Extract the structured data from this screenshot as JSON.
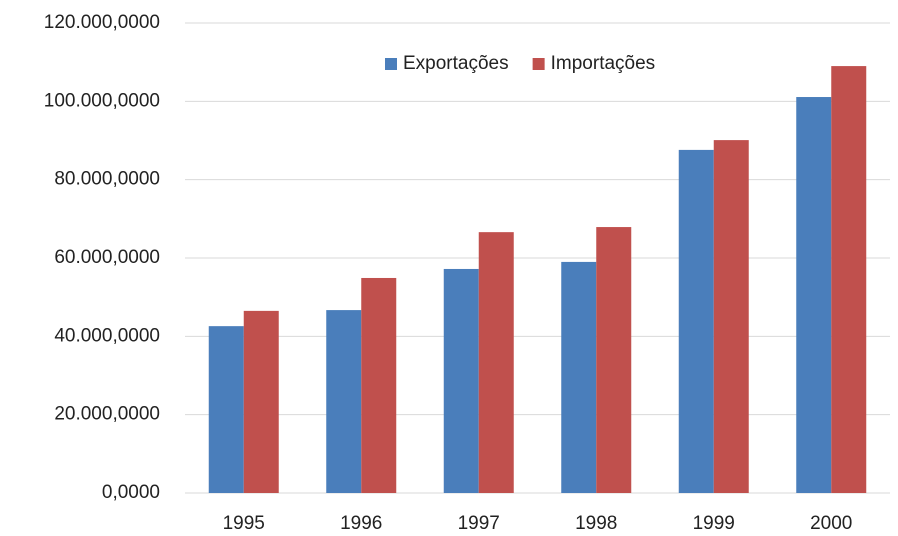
{
  "chart_data": {
    "type": "bar",
    "categories": [
      "1995",
      "1996",
      "1997",
      "1998",
      "1999",
      "2000"
    ],
    "series": [
      {
        "name": "Exportações",
        "color": "#4a7ebb",
        "values": [
          42600,
          46700,
          57200,
          59000,
          87600,
          101100
        ]
      },
      {
        "name": "Importações",
        "color": "#c0504d",
        "values": [
          46500,
          54900,
          66600,
          67900,
          90100,
          109000
        ]
      }
    ],
    "ylim": [
      0,
      120000
    ],
    "yticks": [
      {
        "value": 0,
        "label": "0,0000"
      },
      {
        "value": 20000,
        "label": "20.000,0000"
      },
      {
        "value": 40000,
        "label": "40.000,0000"
      },
      {
        "value": 60000,
        "label": "60.000,0000"
      },
      {
        "value": 80000,
        "label": "80.000,0000"
      },
      {
        "value": 100000,
        "label": "100.000,0000"
      },
      {
        "value": 120000,
        "label": "120.000,0000"
      }
    ],
    "grid": true,
    "legend": "top"
  }
}
